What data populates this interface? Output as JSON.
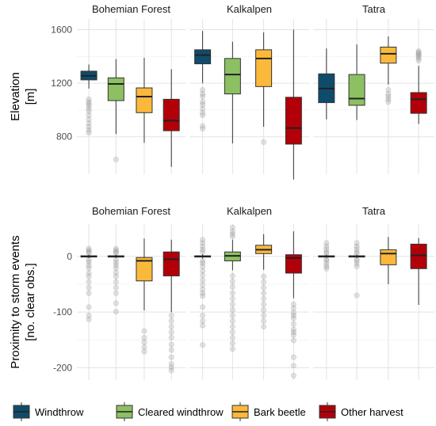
{
  "categories": [
    "Windthrow",
    "Cleared windthrow",
    "Bark beetle",
    "Other harvest"
  ],
  "colors": [
    "#0f4c6b",
    "#8cc063",
    "#fbb93b",
    "#b30008"
  ],
  "chart_data": [
    {
      "type": "boxplot",
      "ylabel_lines": [
        "Elevation",
        "[m]"
      ],
      "ylim": [
        520,
        1680
      ],
      "yticks": [
        800,
        1200,
        1600
      ],
      "facets": [
        {
          "name": "Bohemian Forest",
          "boxes": [
            {
              "q1": 1225,
              "median": 1255,
              "q3": 1290,
              "wlo": 1160,
              "whi": 1340,
              "outliers": [
                1080,
                1060,
                1045,
                1030,
                1010,
                990,
                960,
                930,
                900,
                875,
                850,
                830
              ]
            },
            {
              "q1": 1070,
              "median": 1195,
              "q3": 1240,
              "wlo": 820,
              "whi": 1380,
              "outliers": [
                630
              ]
            },
            {
              "q1": 980,
              "median": 1100,
              "q3": 1165,
              "wlo": 755,
              "whi": 1390,
              "outliers": []
            },
            {
              "q1": 845,
              "median": 920,
              "q3": 1080,
              "wlo": 575,
              "whi": 1305,
              "outliers": []
            }
          ]
        },
        {
          "name": "Kalkalpen",
          "boxes": [
            {
              "q1": 1345,
              "median": 1410,
              "q3": 1450,
              "wlo": 1200,
              "whi": 1590,
              "outliers": [
                1150,
                1120,
                1100,
                1060,
                1040,
                1010,
                980,
                960,
                880,
                860
              ]
            },
            {
              "q1": 1120,
              "median": 1265,
              "q3": 1385,
              "wlo": 750,
              "whi": 1510,
              "outliers": []
            },
            {
              "q1": 1175,
              "median": 1385,
              "q3": 1450,
              "wlo": 875,
              "whi": 1580,
              "outliers": [
                760
              ]
            },
            {
              "q1": 745,
              "median": 865,
              "q3": 1095,
              "wlo": 480,
              "whi": 1600,
              "outliers": []
            }
          ]
        },
        {
          "name": "Tatra",
          "boxes": [
            {
              "q1": 1055,
              "median": 1160,
              "q3": 1270,
              "wlo": 930,
              "whi": 1460,
              "outliers": []
            },
            {
              "q1": 1035,
              "median": 1085,
              "q3": 1265,
              "wlo": 925,
              "whi": 1490,
              "outliers": []
            },
            {
              "q1": 1350,
              "median": 1420,
              "q3": 1470,
              "wlo": 1190,
              "whi": 1550,
              "outliers": [
                1150,
                1120,
                1100,
                1080,
                1060
              ]
            },
            {
              "q1": 975,
              "median": 1080,
              "q3": 1130,
              "wlo": 895,
              "whi": 1330,
              "outliers": [
                1440,
                1430,
                1420,
                1410,
                1400,
                1385,
                1370
              ]
            }
          ]
        }
      ]
    },
    {
      "type": "boxplot",
      "ylabel_lines": [
        "Proximity to storm events",
        "[no. clear obs.]"
      ],
      "ylim": [
        -222,
        58
      ],
      "yticks": [
        -200,
        -100,
        0
      ],
      "facets": [
        {
          "name": "Bohemian Forest",
          "boxes": [
            {
              "q1": -1,
              "median": 0,
              "q3": 1,
              "wlo": -3,
              "whi": 3,
              "outliers": [
                14,
                11,
                8,
                6,
                -6,
                -10,
                -16,
                -21,
                -30,
                -36,
                -46,
                -56,
                -66,
                -91,
                -106,
                -113
              ]
            },
            {
              "q1": -1,
              "median": 0,
              "q3": 1,
              "wlo": -3,
              "whi": 3,
              "outliers": [
                14,
                11,
                8,
                6,
                -6,
                -11,
                -16,
                -21,
                -29,
                -36,
                -46,
                -56,
                -66,
                -84,
                -99
              ]
            },
            {
              "q1": -44,
              "median": -8,
              "q3": -2,
              "wlo": -97,
              "whi": 32,
              "outliers": [
                -134,
                -146,
                -154,
                -163,
                -171
              ]
            },
            {
              "q1": -35,
              "median": -5,
              "q3": 8,
              "wlo": -100,
              "whi": 30,
              "outliers": [
                -106,
                -116,
                -126,
                -136,
                -146,
                -158,
                -168,
                -181,
                -193,
                -199,
                -205
              ]
            }
          ]
        },
        {
          "name": "Kalkalpen",
          "boxes": [
            {
              "q1": -1,
              "median": 0,
              "q3": 1,
              "wlo": -4,
              "whi": 4,
              "outliers": [
                30,
                24,
                18,
                12,
                8,
                -8,
                -12,
                -18,
                -26,
                -34,
                -43,
                -51,
                -59,
                -66,
                -71,
                -91,
                -106,
                -116,
                -124,
                -159
              ]
            },
            {
              "q1": -8,
              "median": 1,
              "q3": 8,
              "wlo": -25,
              "whi": 30,
              "outliers": [
                52,
                45,
                40,
                36,
                -35,
                -45,
                -55,
                -66,
                -76,
                -86,
                -96,
                -106,
                -116,
                -126,
                -136,
                -146,
                -156,
                -166
              ]
            },
            {
              "q1": 5,
              "median": 12,
              "q3": 20,
              "wlo": -24,
              "whi": 40,
              "outliers": [
                -36,
                -46,
                -56,
                -66,
                -76,
                -86,
                -96,
                -106,
                -116,
                -126
              ]
            },
            {
              "q1": -30,
              "median": -3,
              "q3": 3,
              "wlo": -75,
              "whi": 45,
              "outliers": [
                -86,
                -93,
                -101,
                -106,
                -111,
                -121,
                -131,
                -136,
                -141,
                -151,
                -181,
                -196,
                -214
              ]
            }
          ]
        },
        {
          "name": "Tatra",
          "boxes": [
            {
              "q1": -1,
              "median": 0,
              "q3": 1,
              "wlo": -3,
              "whi": 3,
              "outliers": [
                24,
                18,
                13,
                8,
                5,
                -5,
                -8,
                -13,
                -18,
                -22
              ]
            },
            {
              "q1": -1,
              "median": 0,
              "q3": 1,
              "wlo": -3,
              "whi": 3,
              "outliers": [
                24,
                18,
                13,
                8,
                5,
                -5,
                -8,
                -13,
                -18,
                -70
              ]
            },
            {
              "q1": -15,
              "median": 5,
              "q3": 12,
              "wlo": -50,
              "whi": 35,
              "outliers": []
            },
            {
              "q1": -22,
              "median": 2,
              "q3": 22,
              "wlo": -87,
              "whi": 33,
              "outliers": []
            }
          ]
        }
      ]
    }
  ]
}
